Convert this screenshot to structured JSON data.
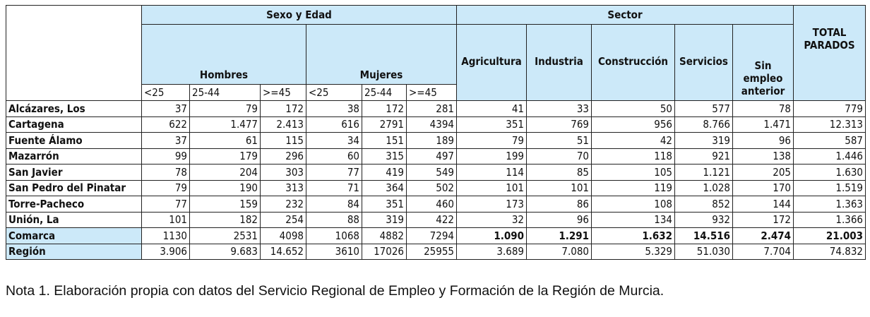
{
  "headers": {
    "group_sexo": "Sexo y Edad",
    "group_sector": "Sector",
    "hombres": "Hombres",
    "mujeres": "Mujeres",
    "ages": [
      "<25",
      "25-44",
      ">=45",
      "<25",
      "25-44",
      ">=45"
    ],
    "sectors": [
      "Agricultura",
      "Industria",
      "Construcción",
      "Servicios",
      "Sin empleo anterior"
    ],
    "total": "TOTAL PARADOS"
  },
  "rows": [
    {
      "label": "Alcázares, Los",
      "values": [
        "37",
        "79",
        "172",
        "38",
        "172",
        "281",
        "41",
        "33",
        "50",
        "577",
        "78",
        "779"
      ]
    },
    {
      "label": "Cartagena",
      "values": [
        "622",
        "1.477",
        "2.413",
        "616",
        "2791",
        "4394",
        "351",
        "769",
        "956",
        "8.766",
        "1.471",
        "12.313"
      ]
    },
    {
      "label": "Fuente Álamo",
      "values": [
        "37",
        "61",
        "115",
        "34",
        "151",
        "189",
        "79",
        "51",
        "42",
        "319",
        "96",
        "587"
      ]
    },
    {
      "label": "Mazarrón",
      "values": [
        "99",
        "179",
        "296",
        "60",
        "315",
        "497",
        "199",
        "70",
        "118",
        "921",
        "138",
        "1.446"
      ]
    },
    {
      "label": "San Javier",
      "values": [
        "78",
        "204",
        "303",
        "77",
        "419",
        "549",
        "114",
        "85",
        "105",
        "1.121",
        "205",
        "1.630"
      ]
    },
    {
      "label": "San Pedro del Pinatar",
      "values": [
        "79",
        "190",
        "313",
        "71",
        "364",
        "502",
        "101",
        "101",
        "119",
        "1.028",
        "170",
        "1.519"
      ]
    },
    {
      "label": "Torre-Pacheco",
      "values": [
        "77",
        "159",
        "232",
        "84",
        "351",
        "460",
        "173",
        "86",
        "108",
        "852",
        "144",
        "1.363"
      ]
    },
    {
      "label": "Unión, La",
      "values": [
        "101",
        "182",
        "254",
        "88",
        "319",
        "422",
        "32",
        "96",
        "134",
        "932",
        "172",
        "1.366"
      ]
    },
    {
      "label": "Comarca",
      "values": [
        "1130",
        "2531",
        "4098",
        "1068",
        "4882",
        "7294",
        "1.090",
        "1.291",
        "1.632",
        "14.516",
        "2.474",
        "21.003"
      ]
    },
    {
      "label": "Región",
      "values": [
        "3.906",
        "9.683",
        "14.652",
        "3610",
        "17026",
        "25955",
        "3.689",
        "7.080",
        "5.329",
        "51.030",
        "7.704",
        "74.832"
      ]
    }
  ],
  "note": "Nota 1. Elaboración propia con datos del Servicio Regional de Empleo y Formación de la Región de Murcia."
}
